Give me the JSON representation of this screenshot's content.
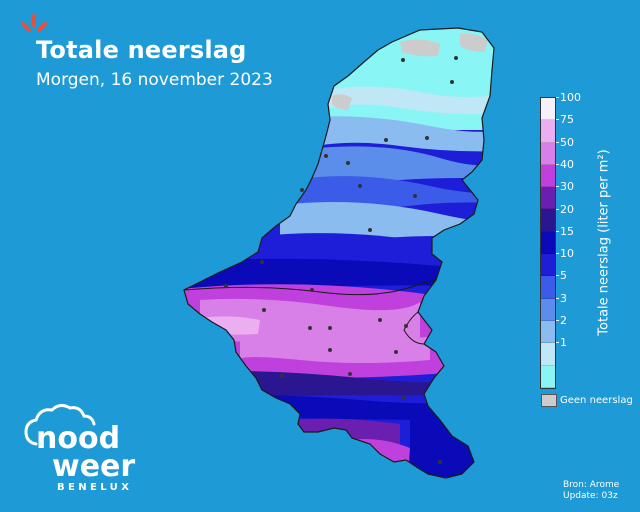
{
  "header": {
    "title": "Totale neerslag",
    "subtitle": "Morgen, 16 november 2023"
  },
  "legend": {
    "title": "Totale neerslag (liter per m²)",
    "ticks": [
      "100",
      "75",
      "50",
      "40",
      "30",
      "20",
      "15",
      "10",
      "5",
      "3",
      "2",
      "1"
    ],
    "colors": [
      "#F5F0FA",
      "#EBAEF0",
      "#D97FE8",
      "#BF40DD",
      "#6A1FB0",
      "#2A1690",
      "#0A0AB8",
      "#1E1ED8",
      "#3A5CE8",
      "#5A8EEA",
      "#8BBCF0",
      "#BFE7F6",
      "#8AF5F5"
    ],
    "no_data_label": "Geen neerslag",
    "no_data_color": "#CCCCCC"
  },
  "source": {
    "line1": "Bron: Arome",
    "line2": "Update: 03z"
  },
  "brand": {
    "name_top": "nood",
    "name_bottom": "weer",
    "region": "BENELUX",
    "accent_color": "#E8503C"
  }
}
